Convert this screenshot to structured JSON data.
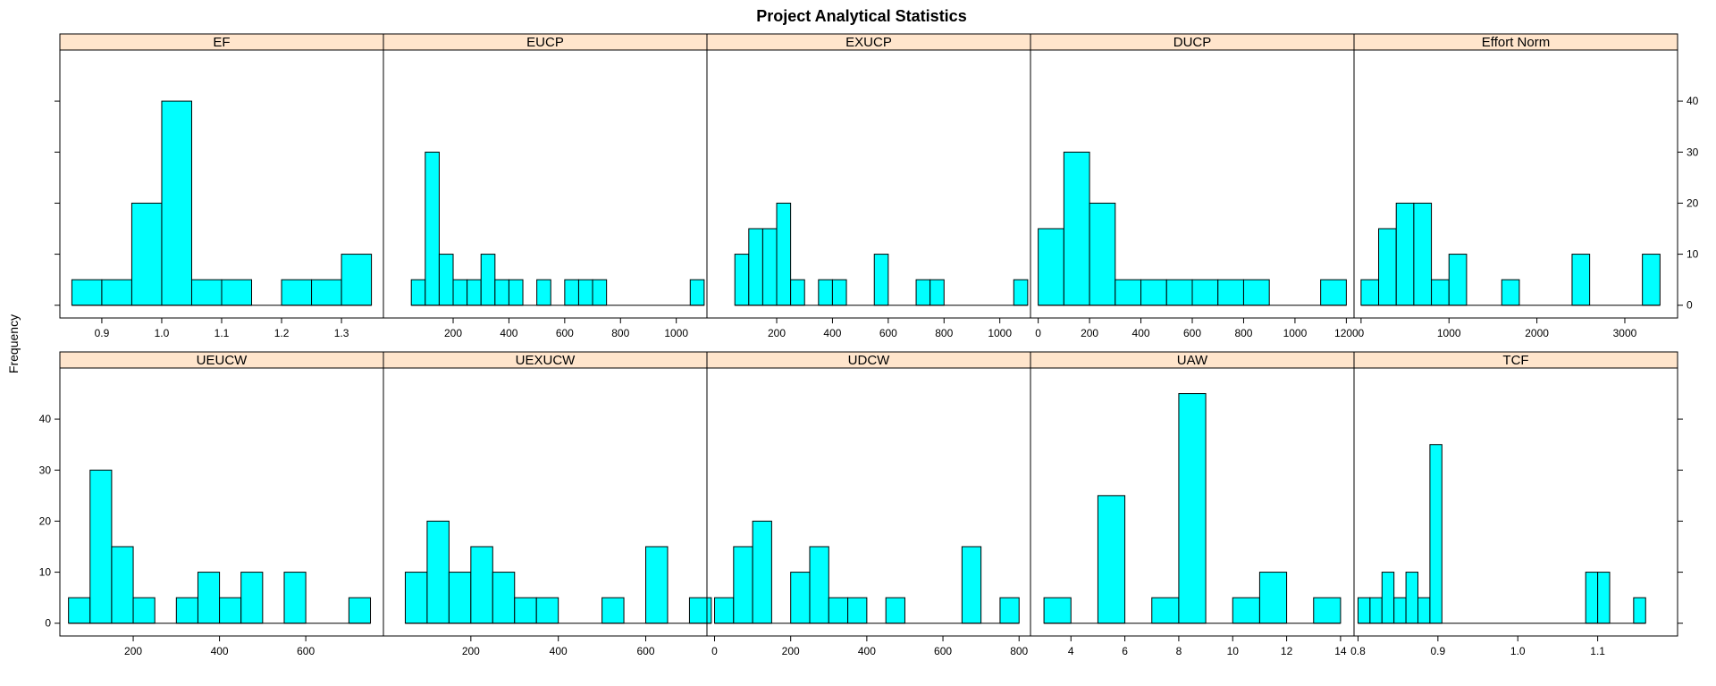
{
  "colors": {
    "bar": "#00ffff",
    "strip": "#ffe5cc",
    "stroke": "#000000",
    "background": "#ffffff"
  },
  "chart_data": {
    "type": "bar",
    "title": "Project Analytical Statistics",
    "ylabel": "Frequency",
    "layout": "lattice 5 columns x 2 rows",
    "ylim": [
      -2.5,
      50
    ],
    "y_ticks": [
      0,
      10,
      20,
      30,
      40
    ],
    "panels": [
      {
        "name": "EF",
        "row": 0,
        "col": 0,
        "x_ticks": [
          "0.9",
          "1.0",
          "1.1",
          "1.2",
          "1.3"
        ],
        "x_tick_values": [
          0.9,
          1.0,
          1.1,
          1.2,
          1.3
        ],
        "xlim": [
          0.83,
          1.37
        ],
        "bins": [
          [
            0.85,
            0.9,
            5
          ],
          [
            0.9,
            0.95,
            5
          ],
          [
            0.95,
            1.0,
            20
          ],
          [
            1.0,
            1.05,
            40
          ],
          [
            1.05,
            1.1,
            5
          ],
          [
            1.1,
            1.15,
            5
          ],
          [
            1.15,
            1.2,
            0
          ],
          [
            1.2,
            1.25,
            5
          ],
          [
            1.25,
            1.3,
            5
          ],
          [
            1.3,
            1.35,
            10
          ]
        ]
      },
      {
        "name": "EUCP",
        "row": 0,
        "col": 1,
        "x_ticks": [
          "200",
          "400",
          "600",
          "800",
          "1000"
        ],
        "x_tick_values": [
          200,
          400,
          600,
          800,
          1000
        ],
        "xlim": [
          -50,
          1110
        ],
        "bins": [
          [
            50,
            100,
            5
          ],
          [
            100,
            150,
            30
          ],
          [
            150,
            200,
            10
          ],
          [
            200,
            250,
            5
          ],
          [
            250,
            300,
            5
          ],
          [
            300,
            350,
            10
          ],
          [
            350,
            400,
            5
          ],
          [
            400,
            450,
            5
          ],
          [
            450,
            500,
            0
          ],
          [
            500,
            550,
            5
          ],
          [
            550,
            600,
            0
          ],
          [
            600,
            650,
            5
          ],
          [
            650,
            700,
            5
          ],
          [
            700,
            750,
            5
          ],
          [
            750,
            1050,
            0
          ],
          [
            1050,
            1100,
            5
          ]
        ]
      },
      {
        "name": "EXUCP",
        "row": 0,
        "col": 2,
        "x_ticks": [
          "200",
          "400",
          "600",
          "800",
          "1000"
        ],
        "x_tick_values": [
          200,
          400,
          600,
          800,
          1000
        ],
        "xlim": [
          -50,
          1110
        ],
        "bins": [
          [
            50,
            100,
            10
          ],
          [
            100,
            150,
            15
          ],
          [
            150,
            200,
            15
          ],
          [
            200,
            250,
            20
          ],
          [
            250,
            300,
            5
          ],
          [
            300,
            350,
            0
          ],
          [
            350,
            400,
            5
          ],
          [
            400,
            450,
            5
          ],
          [
            450,
            550,
            0
          ],
          [
            550,
            600,
            10
          ],
          [
            600,
            700,
            0
          ],
          [
            700,
            750,
            5
          ],
          [
            750,
            800,
            5
          ],
          [
            800,
            1050,
            0
          ],
          [
            1050,
            1100,
            5
          ]
        ]
      },
      {
        "name": "DUCP",
        "row": 0,
        "col": 3,
        "x_ticks": [
          "0",
          "200",
          "400",
          "600",
          "800",
          "1000",
          "1200"
        ],
        "x_tick_values": [
          0,
          200,
          400,
          600,
          800,
          1000,
          1200
        ],
        "xlim": [
          -30,
          1230
        ],
        "bins": [
          [
            0,
            100,
            15
          ],
          [
            100,
            200,
            30
          ],
          [
            200,
            300,
            20
          ],
          [
            300,
            400,
            5
          ],
          [
            400,
            500,
            5
          ],
          [
            500,
            600,
            5
          ],
          [
            600,
            700,
            5
          ],
          [
            700,
            800,
            5
          ],
          [
            800,
            900,
            5
          ],
          [
            900,
            1100,
            0
          ],
          [
            1100,
            1200,
            5
          ]
        ]
      },
      {
        "name": "Effort Norm",
        "row": 0,
        "col": 4,
        "x_ticks": [
          "0",
          "1000",
          "2000",
          "3000"
        ],
        "x_tick_values": [
          0,
          1000,
          2000,
          3000
        ],
        "xlim": [
          -80,
          3600
        ],
        "bins": [
          [
            0,
            200,
            5
          ],
          [
            200,
            400,
            15
          ],
          [
            400,
            600,
            20
          ],
          [
            600,
            800,
            20
          ],
          [
            800,
            1000,
            5
          ],
          [
            1000,
            1200,
            10
          ],
          [
            1200,
            1600,
            0
          ],
          [
            1600,
            1800,
            5
          ],
          [
            1800,
            2400,
            0
          ],
          [
            2400,
            2600,
            10
          ],
          [
            2600,
            3200,
            0
          ],
          [
            3200,
            3400,
            10
          ]
        ]
      },
      {
        "name": "UEUCW",
        "row": 1,
        "col": 0,
        "x_ticks": [
          "200",
          "400",
          "600"
        ],
        "x_tick_values": [
          200,
          400,
          600
        ],
        "xlim": [
          30,
          780
        ],
        "bins": [
          [
            50,
            100,
            5
          ],
          [
            100,
            150,
            30
          ],
          [
            150,
            200,
            15
          ],
          [
            200,
            250,
            5
          ],
          [
            250,
            300,
            0
          ],
          [
            300,
            350,
            5
          ],
          [
            350,
            400,
            10
          ],
          [
            400,
            450,
            5
          ],
          [
            450,
            500,
            10
          ],
          [
            500,
            550,
            0
          ],
          [
            550,
            600,
            10
          ],
          [
            600,
            700,
            0
          ],
          [
            700,
            750,
            5
          ]
        ]
      },
      {
        "name": "UEXUCW",
        "row": 1,
        "col": 1,
        "x_ticks": [
          "200",
          "400",
          "600"
        ],
        "x_tick_values": [
          200,
          400,
          600
        ],
        "xlim": [
          0,
          740
        ],
        "bins": [
          [
            50,
            100,
            10
          ],
          [
            100,
            150,
            20
          ],
          [
            150,
            200,
            10
          ],
          [
            200,
            250,
            15
          ],
          [
            250,
            300,
            10
          ],
          [
            300,
            350,
            5
          ],
          [
            350,
            400,
            5
          ],
          [
            400,
            500,
            0
          ],
          [
            500,
            550,
            5
          ],
          [
            550,
            600,
            0
          ],
          [
            600,
            650,
            15
          ],
          [
            650,
            700,
            0
          ],
          [
            700,
            750,
            5
          ]
        ]
      },
      {
        "name": "UDCW",
        "row": 1,
        "col": 2,
        "x_ticks": [
          "0",
          "200",
          "400",
          "600",
          "800"
        ],
        "x_tick_values": [
          0,
          200,
          400,
          600,
          800
        ],
        "xlim": [
          -20,
          830
        ],
        "bins": [
          [
            0,
            50,
            5
          ],
          [
            50,
            100,
            15
          ],
          [
            100,
            150,
            20
          ],
          [
            150,
            200,
            0
          ],
          [
            200,
            250,
            10
          ],
          [
            250,
            300,
            15
          ],
          [
            300,
            350,
            5
          ],
          [
            350,
            400,
            5
          ],
          [
            400,
            450,
            0
          ],
          [
            450,
            500,
            5
          ],
          [
            500,
            650,
            0
          ],
          [
            650,
            700,
            15
          ],
          [
            700,
            750,
            0
          ],
          [
            750,
            800,
            5
          ]
        ]
      },
      {
        "name": "UAW",
        "row": 1,
        "col": 3,
        "x_ticks": [
          "4",
          "6",
          "8",
          "10",
          "12",
          "14"
        ],
        "x_tick_values": [
          4,
          6,
          8,
          10,
          12,
          14
        ],
        "xlim": [
          2.5,
          14.5
        ],
        "bins": [
          [
            3,
            4,
            5
          ],
          [
            4,
            5,
            0
          ],
          [
            5,
            6,
            25
          ],
          [
            6,
            7,
            0
          ],
          [
            7,
            8,
            5
          ],
          [
            8,
            9,
            45
          ],
          [
            9,
            10,
            0
          ],
          [
            10,
            11,
            5
          ],
          [
            11,
            12,
            10
          ],
          [
            12,
            13,
            0
          ],
          [
            13,
            14,
            5
          ]
        ]
      },
      {
        "name": "TCF",
        "row": 1,
        "col": 4,
        "x_ticks": [
          "0.8",
          "0.9",
          "1.0",
          "1.1"
        ],
        "x_tick_values": [
          0.8,
          0.9,
          1.0,
          1.1
        ],
        "xlim": [
          0.795,
          1.2
        ],
        "bins": [
          [
            0.8,
            0.815,
            5
          ],
          [
            0.815,
            0.83,
            5
          ],
          [
            0.83,
            0.845,
            10
          ],
          [
            0.845,
            0.86,
            5
          ],
          [
            0.86,
            0.875,
            10
          ],
          [
            0.875,
            0.89,
            5
          ],
          [
            0.89,
            0.905,
            35
          ],
          [
            0.905,
            1.085,
            0
          ],
          [
            1.085,
            1.1,
            10
          ],
          [
            1.1,
            1.115,
            10
          ],
          [
            1.115,
            1.145,
            0
          ],
          [
            1.145,
            1.16,
            5
          ]
        ]
      }
    ]
  }
}
